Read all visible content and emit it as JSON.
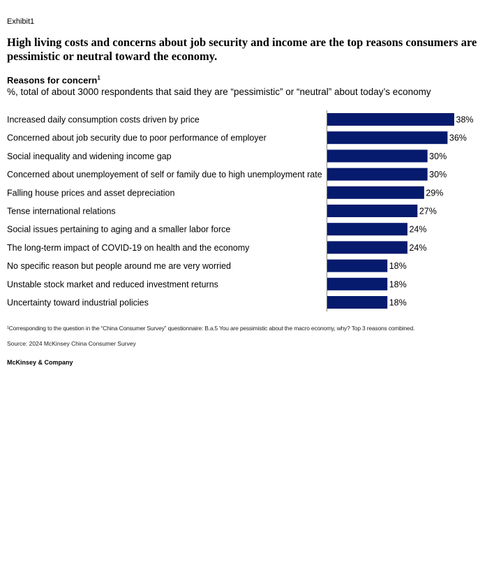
{
  "exhibit_label": "Exhibit1",
  "headline": "High living costs and concerns about job security and income are the top reasons consumers are pessimistic or neutral toward the economy.",
  "chart_data": {
    "type": "bar",
    "orientation": "horizontal",
    "title": "Reasons for concern",
    "title_footnote_marker": "1",
    "subtitle": "%, total of about 3000 respondents that said they are “pessimistic” or “neutral” about today’s economy",
    "categories": [
      "Increased daily consumption costs driven by price",
      "Concerned about job security due to poor performance of employer",
      "Social inequality and widening income gap",
      "Concerned about unemployement of self or family due to high unemployment rate",
      "Falling house prices and asset depreciation",
      "Tense international relations",
      "Social issues pertaining to aging and a smaller labor force",
      "The long-term impact of COVID-19 on health and the economy",
      "No specific reason but people around me are very worried",
      "Unstable stock market and reduced investment returns",
      "Uncertainty toward industrial policies"
    ],
    "values": [
      38,
      36,
      30,
      30,
      29,
      27,
      24,
      24,
      18,
      18,
      18
    ],
    "value_labels": [
      "38%",
      "36%",
      "30%",
      "30%",
      "29%",
      "27%",
      "24%",
      "24%",
      "18%",
      "18%",
      "18%"
    ],
    "bar_color": "#061a6e",
    "xlim": [
      0,
      40
    ],
    "grid": false,
    "legend": "none"
  },
  "footnote": "¹Corresponding to the question in the “China Consumer Survey” questionnaire: B.a.5 You are pessimistic about the macro economy, why? Top 3 reasons combined.",
  "source": "Source: 2024 McKinsey China Consumer Survey",
  "brand": "McKinsey & Company"
}
